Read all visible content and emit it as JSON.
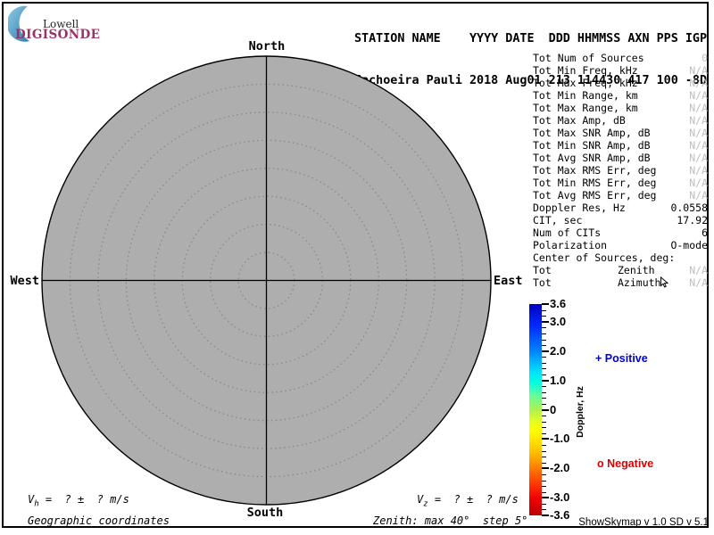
{
  "logo": {
    "top": "Lowell",
    "bottom": "DIGISONDE",
    "brand_color": "#993366"
  },
  "header": {
    "line1": "STATION NAME    YYYY DATE  DDD HHMMSS AXN PPS IGP",
    "line2": "Cachoeira Pauli 2018 Aug01 213 114430 417 100 -8D"
  },
  "stats": {
    "muted_color": "#bebebe",
    "rows": [
      {
        "label": "Tot Num of Sources",
        "value": "0",
        "muted": true
      },
      {
        "label": "Tot Min Freq, kHz",
        "value": "N/A",
        "muted": true
      },
      {
        "label": "Tot Max Freq, kHz",
        "value": "N/A",
        "muted": true
      },
      {
        "label": "Tot Min Range, km",
        "value": "N/A",
        "muted": true
      },
      {
        "label": "Tot Max Range, km",
        "value": "N/A",
        "muted": true
      },
      {
        "label": "Tot Max Amp, dB",
        "value": "N/A",
        "muted": true
      },
      {
        "label": "Tot Max SNR Amp, dB",
        "value": "N/A",
        "muted": true
      },
      {
        "label": "Tot Min SNR Amp, dB",
        "value": "N/A",
        "muted": true
      },
      {
        "label": "Tot Avg SNR Amp, dB",
        "value": "N/A",
        "muted": true
      },
      {
        "label": "Tot Max RMS Err, deg",
        "value": "N/A",
        "muted": true
      },
      {
        "label": "Tot Min RMS Err, deg",
        "value": "N/A",
        "muted": true
      },
      {
        "label": "Tot Avg RMS Err, deg",
        "value": "N/A",
        "muted": true
      },
      {
        "label": "Doppler Res, Hz",
        "value": "0.0558",
        "muted": false
      },
      {
        "label": "CIT, sec",
        "value": "17.92",
        "muted": false
      },
      {
        "label": "Num of CITs",
        "value": "6",
        "muted": false
      },
      {
        "label": "Polarization",
        "value": "O-mode",
        "muted": false
      },
      {
        "label": "Center of Sources, deg:",
        "value": "",
        "muted": false
      },
      {
        "label": "Tot",
        "sub": "Zenith",
        "value": "N/A",
        "muted": true
      },
      {
        "label": "Tot",
        "sub": "Azimuth",
        "value": "N/A",
        "muted": true
      }
    ]
  },
  "skymap": {
    "north": "North",
    "south": "South",
    "east": "East",
    "west": "West",
    "fill_color": "#aeaeae",
    "max_zenith_deg": 40,
    "step_deg": 5
  },
  "colorbar": {
    "axis_label": "Doppler, Hz",
    "max": 3.6,
    "min": -3.6,
    "minor_step": 0.2,
    "ticks": [
      {
        "value": 3.6,
        "label": "3.6"
      },
      {
        "value": 3.0,
        "label": "3.0"
      },
      {
        "value": 2.0,
        "label": "2.0"
      },
      {
        "value": 1.0,
        "label": "1.0"
      },
      {
        "value": 0,
        "label": "0"
      },
      {
        "value": -1.0,
        "label": "-1.0"
      },
      {
        "value": -2.0,
        "label": "-2.0"
      },
      {
        "value": -3.0,
        "label": "-3.0"
      },
      {
        "value": -3.6,
        "label": "-3.6"
      }
    ],
    "gradient": [
      "#0000c0 0%",
      "#0028ff 10%",
      "#0080ff 22%",
      "#00e0ff 32%",
      "#00ffe0 37%",
      "#60ffa0 43%",
      "#b0f050 50%",
      "#e8ff20 56%",
      "#ffff00 60%",
      "#ffc000 70%",
      "#ff7800 78%",
      "#ff3000 86%",
      "#f00000 92%",
      "#b80000 100%"
    ]
  },
  "legend": {
    "positive": "+ Positive",
    "positive_color": "#0000dd",
    "negative": "o Negative",
    "negative_color": "#dd0000"
  },
  "footer": {
    "vh_var": "V",
    "vh_sub": "h",
    "vh_rest": " =  ? ±  ? m/s",
    "vz_var": "V",
    "vz_sub": "z",
    "vz_rest": " =  ? ±  ? m/s",
    "coords": "Geographic coordinates",
    "zenith": "Zenith: max 40°  step 5°",
    "version": "ShowSkymap v 1.0  SD v 5.1"
  }
}
